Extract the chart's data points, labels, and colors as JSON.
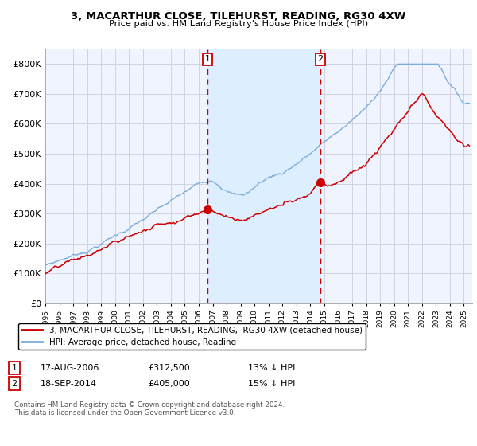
{
  "title": "3, MACARTHUR CLOSE, TILEHURST, READING, RG30 4XW",
  "subtitle": "Price paid vs. HM Land Registry's House Price Index (HPI)",
  "legend_red": "3, MACARTHUR CLOSE, TILEHURST, READING,  RG30 4XW (detached house)",
  "legend_blue": "HPI: Average price, detached house, Reading",
  "annotation1_date": "17-AUG-2006",
  "annotation1_price": "£312,500",
  "annotation1_hpi": "13% ↓ HPI",
  "annotation1_year": 2006.625,
  "annotation1_value": 312500,
  "annotation2_date": "18-SEP-2014",
  "annotation2_price": "£405,000",
  "annotation2_hpi": "15% ↓ HPI",
  "annotation2_year": 2014.708,
  "annotation2_value": 405000,
  "footnote": "Contains HM Land Registry data © Crown copyright and database right 2024.\nThis data is licensed under the Open Government Licence v3.0.",
  "red_color": "#cc0000",
  "blue_color": "#7aaddc",
  "shade_color": "#ddeeff",
  "bg_color": "#f0f4ff",
  "grid_color": "#ccccdd",
  "ylim": [
    0,
    850000
  ],
  "yticks": [
    0,
    100000,
    200000,
    300000,
    400000,
    500000,
    600000,
    700000,
    800000
  ],
  "ytick_labels": [
    "£0",
    "£100K",
    "£200K",
    "£300K",
    "£400K",
    "£500K",
    "£600K",
    "£700K",
    "£800K"
  ],
  "xmin": 1995.0,
  "xmax": 2025.6
}
